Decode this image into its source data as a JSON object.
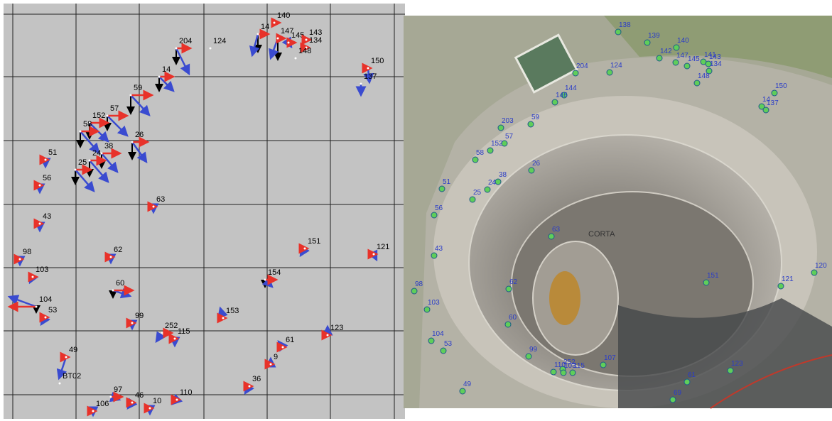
{
  "left_panel": {
    "labels": [
      "204",
      "124",
      "140",
      "14",
      "147",
      "145",
      "143",
      "134",
      "148",
      "150",
      "137",
      "14",
      "59",
      "57",
      "152",
      "58",
      "38",
      "24",
      "26",
      "25",
      "51",
      "56",
      "63",
      "43",
      "151",
      "121",
      "62",
      "98",
      "103",
      "154",
      "60",
      "104",
      "53",
      "153",
      "99",
      "252",
      "115",
      "123",
      "61",
      "49",
      "9",
      "BT02",
      "36",
      "97",
      "46",
      "110",
      "106",
      "10"
    ]
  },
  "right_panel": {
    "pit_label": "CORTA",
    "labels": [
      "138",
      "139",
      "140",
      "142",
      "147",
      "145",
      "141",
      "143",
      "134",
      "148",
      "150",
      "14",
      "137",
      "204",
      "124",
      "144",
      "146",
      "203",
      "59",
      "57",
      "152",
      "58",
      "26",
      "38",
      "24",
      "25",
      "51",
      "56",
      "63",
      "43",
      "98",
      "103",
      "62",
      "151",
      "121",
      "120",
      "60",
      "104",
      "53",
      "99",
      "107",
      "252",
      "110",
      "103",
      "115",
      "123",
      "61",
      "49",
      "69"
    ]
  }
}
